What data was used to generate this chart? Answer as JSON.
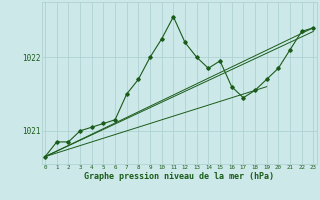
{
  "background_color": "#cde8e8",
  "grid_color": "#aacece",
  "line_color": "#1a5c1a",
  "marker_color": "#1a5c1a",
  "xlabel": "Graphe pression niveau de la mer (hPa)",
  "xlabel_fontsize": 6.0,
  "ylabel_ticks": [
    1021,
    1022
  ],
  "ytick_fontsize": 5.5,
  "xtick_fontsize": 4.2,
  "xlim": [
    -0.3,
    23.3
  ],
  "ylim": [
    1020.55,
    1022.75
  ],
  "xticks": [
    0,
    1,
    2,
    3,
    4,
    5,
    6,
    7,
    8,
    9,
    10,
    11,
    12,
    13,
    14,
    15,
    16,
    17,
    18,
    19,
    20,
    21,
    22,
    23
  ],
  "series": [
    {
      "x": [
        0,
        1,
        2,
        3,
        4,
        5,
        6,
        7,
        8,
        9,
        10,
        11,
        12,
        13,
        14,
        15,
        16,
        17,
        18,
        19,
        20,
        21,
        22,
        23
      ],
      "y": [
        1020.65,
        1020.85,
        1020.85,
        1021.0,
        1021.05,
        1021.1,
        1021.15,
        1021.5,
        1021.7,
        1022.0,
        1022.25,
        1022.55,
        1022.2,
        1022.0,
        1021.85,
        1021.95,
        1021.6,
        1021.45,
        1021.55,
        1021.7,
        1021.85,
        1022.1,
        1022.35,
        1022.4
      ],
      "has_markers": true,
      "linewidth": 0.8
    },
    {
      "x": [
        0,
        23
      ],
      "y": [
        1020.65,
        1022.4
      ],
      "has_markers": false,
      "linewidth": 0.7
    },
    {
      "x": [
        0,
        19
      ],
      "y": [
        1020.65,
        1021.6
      ],
      "has_markers": false,
      "linewidth": 0.7
    },
    {
      "x": [
        0,
        23
      ],
      "y": [
        1020.65,
        1022.35
      ],
      "has_markers": false,
      "linewidth": 0.7
    }
  ]
}
